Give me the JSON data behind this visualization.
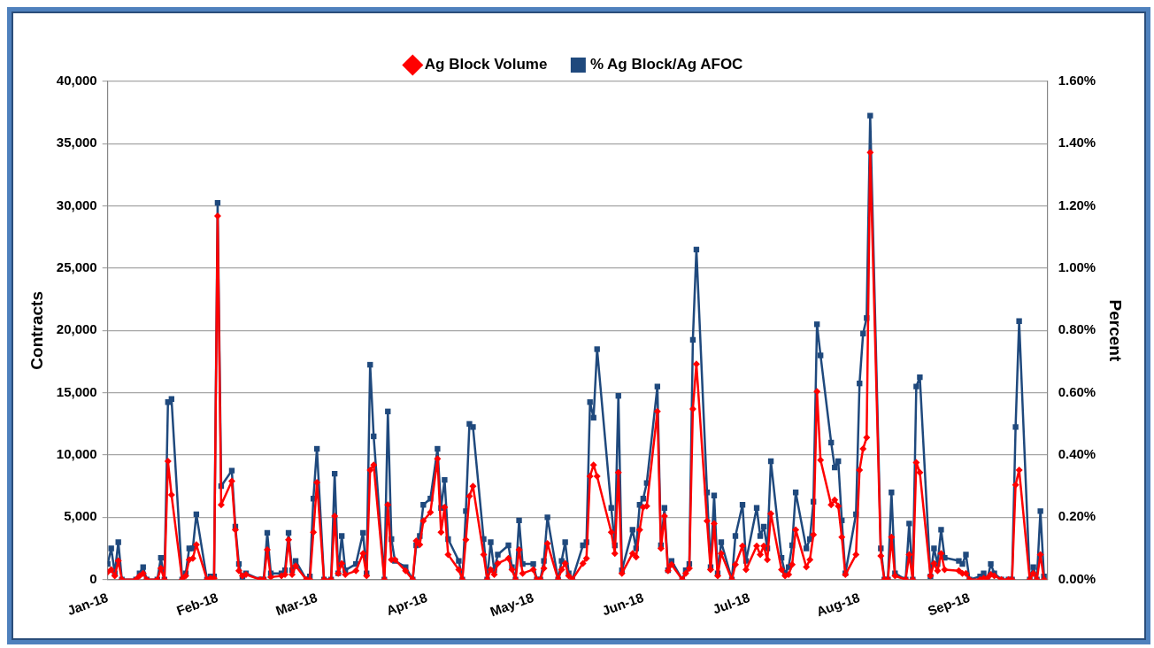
{
  "chart_data": {
    "type": "line",
    "ylabel": "Contracts",
    "y2label": "Percent",
    "legend": "top",
    "grid": "y",
    "line_style": "solid",
    "x": [
      "2018-01-01",
      "2018-01-02",
      "2018-01-03",
      "2018-01-04",
      "2018-01-05",
      "2018-01-09",
      "2018-01-10",
      "2018-01-11",
      "2018-01-12",
      "2018-01-15",
      "2018-01-16",
      "2018-01-17",
      "2018-01-18",
      "2018-01-19",
      "2018-01-22",
      "2018-01-23",
      "2018-01-24",
      "2018-01-25",
      "2018-01-26",
      "2018-01-29",
      "2018-01-30",
      "2018-01-31",
      "2018-02-01",
      "2018-02-02",
      "2018-02-05",
      "2018-02-06",
      "2018-02-07",
      "2018-02-08",
      "2018-02-09",
      "2018-02-13",
      "2018-02-14",
      "2018-02-15",
      "2018-02-16",
      "2018-02-19",
      "2018-02-20",
      "2018-02-21",
      "2018-02-22",
      "2018-02-23",
      "2018-02-26",
      "2018-02-27",
      "2018-02-28",
      "2018-03-01",
      "2018-03-03",
      "2018-03-05",
      "2018-03-06",
      "2018-03-07",
      "2018-03-08",
      "2018-03-09",
      "2018-03-12",
      "2018-03-14",
      "2018-03-15",
      "2018-03-16",
      "2018-03-17",
      "2018-03-20",
      "2018-03-21",
      "2018-03-22",
      "2018-03-23",
      "2018-03-26",
      "2018-03-28",
      "2018-03-29",
      "2018-03-30",
      "2018-03-31",
      "2018-04-02",
      "2018-04-04",
      "2018-04-05",
      "2018-04-06",
      "2018-04-07",
      "2018-04-10",
      "2018-04-11",
      "2018-04-12",
      "2018-04-13",
      "2018-04-14",
      "2018-04-17",
      "2018-04-18",
      "2018-04-19",
      "2018-04-20",
      "2018-04-21",
      "2018-04-24",
      "2018-04-25",
      "2018-04-26",
      "2018-04-27",
      "2018-04-28",
      "2018-05-01",
      "2018-05-02",
      "2018-05-03",
      "2018-05-04",
      "2018-05-05",
      "2018-05-08",
      "2018-05-09",
      "2018-05-10",
      "2018-05-11",
      "2018-05-12",
      "2018-05-15",
      "2018-05-16",
      "2018-05-17",
      "2018-05-18",
      "2018-05-19",
      "2018-05-23",
      "2018-05-24",
      "2018-05-25",
      "2018-05-26",
      "2018-05-29",
      "2018-05-30",
      "2018-05-31",
      "2018-06-01",
      "2018-06-02",
      "2018-06-05",
      "2018-06-06",
      "2018-06-07",
      "2018-06-08",
      "2018-06-09",
      "2018-06-12",
      "2018-06-13",
      "2018-06-14",
      "2018-06-15",
      "2018-06-16",
      "2018-06-19",
      "2018-06-20",
      "2018-06-21",
      "2018-06-22",
      "2018-06-23",
      "2018-06-26",
      "2018-06-27",
      "2018-06-29",
      "2018-06-30",
      "2018-07-03",
      "2018-07-04",
      "2018-07-05",
      "2018-07-06",
      "2018-07-07",
      "2018-07-10",
      "2018-07-11",
      "2018-07-12",
      "2018-07-13",
      "2018-07-14",
      "2018-07-17",
      "2018-07-18",
      "2018-07-19",
      "2018-07-20",
      "2018-07-21",
      "2018-07-24",
      "2018-07-25",
      "2018-07-26",
      "2018-07-27",
      "2018-07-28",
      "2018-07-31",
      "2018-08-01",
      "2018-08-02",
      "2018-08-03",
      "2018-08-04",
      "2018-08-07",
      "2018-08-08",
      "2018-08-09",
      "2018-08-10",
      "2018-08-11",
      "2018-08-14",
      "2018-08-15",
      "2018-08-16",
      "2018-08-17",
      "2018-08-18",
      "2018-08-21",
      "2018-08-22",
      "2018-08-23",
      "2018-08-24",
      "2018-08-25",
      "2018-08-29",
      "2018-08-30",
      "2018-08-31",
      "2018-09-01",
      "2018-09-04",
      "2018-09-05",
      "2018-09-06",
      "2018-09-07",
      "2018-09-08",
      "2018-09-10",
      "2018-09-12",
      "2018-09-13",
      "2018-09-14",
      "2018-09-15",
      "2018-09-18",
      "2018-09-19",
      "2018-09-20",
      "2018-09-21",
      "2018-09-22"
    ],
    "xlim": [
      "2018-01-01",
      "2018-09-23"
    ],
    "xticks": [
      {
        "value": "2018-01-01",
        "label": "Jan-18"
      },
      {
        "value": "2018-02-01",
        "label": "Feb-18"
      },
      {
        "value": "2018-03-01",
        "label": "Mar-18"
      },
      {
        "value": "2018-04-01",
        "label": "Apr-18"
      },
      {
        "value": "2018-05-01",
        "label": "May-18"
      },
      {
        "value": "2018-06-01",
        "label": "Jun-18"
      },
      {
        "value": "2018-07-01",
        "label": "Jul-18"
      },
      {
        "value": "2018-08-01",
        "label": "Aug-18"
      },
      {
        "value": "2018-09-01",
        "label": "Sep-18"
      }
    ],
    "ylim": [
      0,
      40000
    ],
    "yticks": [
      0,
      {
        "value": 5000,
        "label": "5,000"
      },
      {
        "value": 10000,
        "label": "10,000"
      },
      {
        "value": 15000,
        "label": "15,000"
      },
      {
        "value": 20000,
        "label": "20,000"
      },
      {
        "value": 25000,
        "label": "25,000"
      },
      {
        "value": 30000,
        "label": "30,000"
      },
      {
        "value": 35000,
        "label": "35,000"
      },
      {
        "value": 40000,
        "label": "40,000"
      }
    ],
    "y2lim": [
      0,
      1.6
    ],
    "y2ticks": [
      {
        "value": 0,
        "label": "0.00%"
      },
      {
        "value": 0.2,
        "label": "0.20%"
      },
      {
        "value": 0.4,
        "label": "0.40%"
      },
      {
        "value": 0.6,
        "label": "0.60%"
      },
      {
        "value": 0.8,
        "label": "0.80%"
      },
      {
        "value": 1.0,
        "label": "1.00%"
      },
      {
        "value": 1.2,
        "label": "1.20%"
      },
      {
        "value": 1.4,
        "label": "1.40%"
      },
      {
        "value": 1.6,
        "label": "1.60%"
      }
    ],
    "series": [
      {
        "name": "Ag Block Volume",
        "color": "#ff0000",
        "marker": "diamond",
        "values": [
          600,
          800,
          300,
          1500,
          0,
          0,
          300,
          500,
          0,
          0,
          900,
          0,
          9500,
          6800,
          0,
          300,
          1600,
          1700,
          2800,
          0,
          100,
          100,
          29200,
          6000,
          7900,
          4000,
          700,
          300,
          400,
          0,
          0,
          2400,
          200,
          300,
          400,
          3200,
          400,
          1100,
          0,
          0,
          3800,
          7800,
          0,
          0,
          5100,
          500,
          1300,
          400,
          700,
          2100,
          300,
          8800,
          9200,
          0,
          6000,
          1600,
          1600,
          700,
          0,
          3100,
          2800,
          4700,
          5400,
          9700,
          3800,
          5800,
          2000,
          800,
          0,
          3200,
          6700,
          7500,
          2000,
          0,
          800,
          400,
          1300,
          1700,
          800,
          0,
          2400,
          500,
          800,
          0,
          0,
          900,
          2900,
          0,
          800,
          1300,
          300,
          0,
          1300,
          1700,
          8300,
          9200,
          8300,
          3800,
          2100,
          8600,
          500,
          2100,
          1800,
          4000,
          5800,
          5900,
          13500,
          2500,
          5100,
          700,
          1200,
          0,
          500,
          900,
          13700,
          17300,
          4700,
          800,
          4500,
          300,
          2100,
          0,
          1200,
          2700,
          800,
          2700,
          2000,
          2700,
          1600,
          5300,
          800,
          300,
          400,
          1200,
          4000,
          1000,
          1600,
          3600,
          15100,
          9600,
          6000,
          6400,
          5900,
          3400,
          400,
          2000,
          8800,
          10500,
          11400,
          34300,
          1900,
          0,
          0,
          3400,
          300,
          0,
          2000,
          0,
          9400,
          8600,
          300,
          1300,
          700,
          2100,
          800,
          700,
          500,
          500,
          0,
          0,
          100,
          100,
          400,
          300,
          0,
          0,
          0,
          7600,
          8800,
          0,
          500,
          0,
          2000,
          0
        ]
      },
      {
        "name": "% Ag Block/Ag AFOC",
        "color": "#1f497d",
        "marker": "square",
        "axis": "y2",
        "values": [
          0.05,
          0.1,
          0.02,
          0.12,
          0,
          0,
          0.02,
          0.04,
          0,
          0,
          0.07,
          0,
          0.57,
          0.58,
          0,
          0.02,
          0.1,
          0.1,
          0.21,
          0,
          0.01,
          0.01,
          1.21,
          0.3,
          0.35,
          0.17,
          0.05,
          0,
          0.02,
          0,
          0,
          0.15,
          0.02,
          0.02,
          0.03,
          0.15,
          0.03,
          0.06,
          0,
          0.01,
          0.26,
          0.42,
          0,
          0,
          0.34,
          0.02,
          0.14,
          0.03,
          0.05,
          0.15,
          0.02,
          0.69,
          0.46,
          0,
          0.54,
          0.13,
          0.06,
          0.04,
          0,
          0.11,
          0.14,
          0.24,
          0.26,
          0.42,
          0.23,
          0.32,
          0.13,
          0.06,
          0,
          0.22,
          0.5,
          0.49,
          0.13,
          0,
          0.12,
          0.03,
          0.08,
          0.11,
          0.04,
          0,
          0.19,
          0.05,
          0.05,
          0,
          0,
          0.06,
          0.2,
          0,
          0.06,
          0.12,
          0.02,
          0,
          0.11,
          0.12,
          0.57,
          0.52,
          0.74,
          0.23,
          0.11,
          0.59,
          0.03,
          0.16,
          0.1,
          0.24,
          0.26,
          0.31,
          0.62,
          0.11,
          0.23,
          0.03,
          0.06,
          0,
          0.03,
          0.05,
          0.77,
          1.06,
          0.28,
          0.04,
          0.27,
          0.02,
          0.12,
          0,
          0.14,
          0.24,
          0.06,
          0.23,
          0.14,
          0.17,
          0.1,
          0.38,
          0.07,
          0.02,
          0.04,
          0.11,
          0.28,
          0.1,
          0.13,
          0.25,
          0.82,
          0.72,
          0.44,
          0.36,
          0.38,
          0.19,
          0.02,
          0.21,
          0.63,
          0.79,
          0.84,
          1.49,
          0.1,
          0,
          0,
          0.28,
          0.02,
          0,
          0.18,
          0,
          0.62,
          0.65,
          0.01,
          0.1,
          0.05,
          0.16,
          0.07,
          0.06,
          0.05,
          0.08,
          0,
          0.01,
          0.02,
          0,
          0.05,
          0.02,
          0,
          0,
          0,
          0.49,
          0.83,
          0,
          0.04,
          0,
          0.22,
          0.01
        ]
      }
    ]
  }
}
